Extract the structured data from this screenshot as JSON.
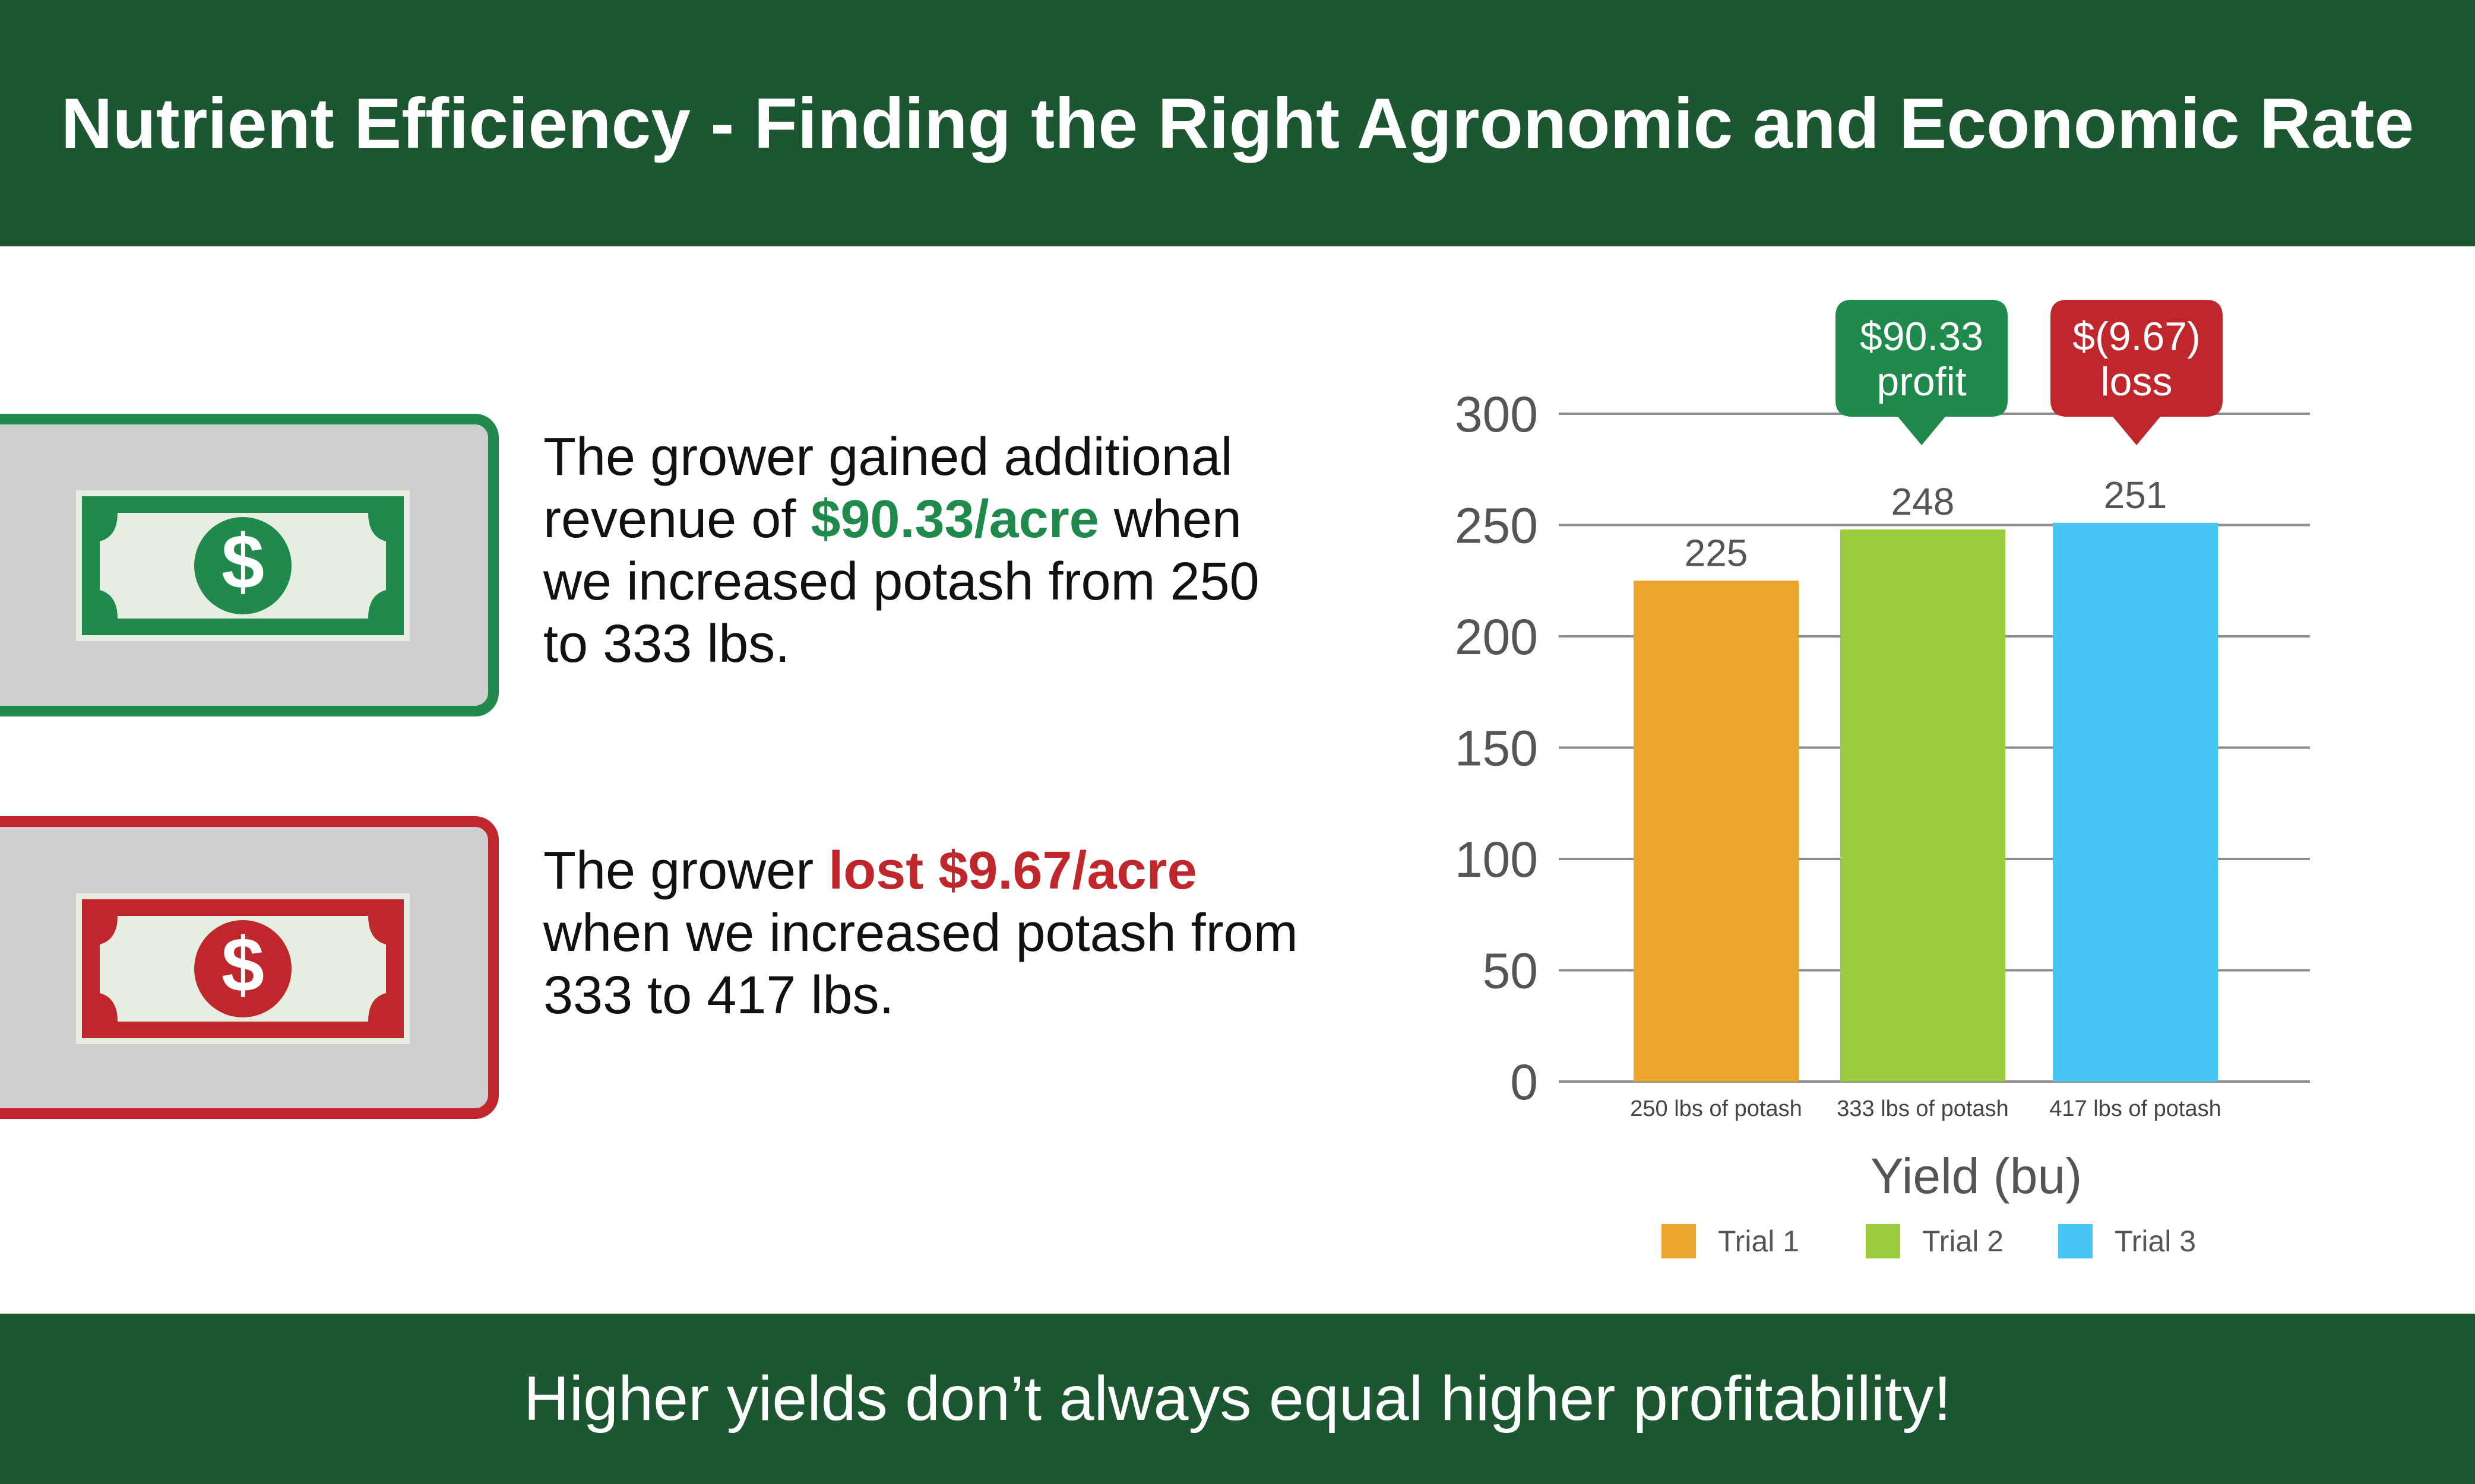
{
  "title": "Nutrient Efficiency - Finding the Right Agronomic and Economic Rate",
  "footer_text": "Higher yields don’t always equal higher profitability!",
  "notes": {
    "gain": {
      "before": "The grower gained additional revenue of ",
      "highlight": "$90.33/acre",
      "after": " when we increased potash from 250 to 333 lbs."
    },
    "loss": {
      "before": "The grower ",
      "highlight": "lost $9.67/acre",
      "after": " when we increased potash from 333 to 417 lbs."
    }
  },
  "icons": {
    "gain": "dollar-bill-green-icon",
    "loss": "dollar-bill-red-icon",
    "dollar_symbol": "$"
  },
  "colors": {
    "header_bg": "#1c5732",
    "gain": "#1f8a4c",
    "loss": "#c0272d",
    "trial1": "#eca42c",
    "trial2": "#9acb3c",
    "trial3": "#47c5f4"
  },
  "callouts": {
    "profit": [
      "$90.33",
      "profit"
    ],
    "loss": [
      "$(9.67)",
      "loss"
    ]
  },
  "chart_data": {
    "type": "bar",
    "xlabel": "Yield (bu)",
    "ylabel": "",
    "ylim": [
      0,
      300
    ],
    "yticks": [
      0,
      50,
      100,
      150,
      200,
      250,
      300
    ],
    "grid": true,
    "legend_position": "bottom",
    "categories": [
      "250 lbs of potash",
      "333 lbs of potash",
      "417 lbs of potash"
    ],
    "series": [
      {
        "name": "Trial 1",
        "values": [
          225,
          null,
          null
        ]
      },
      {
        "name": "Trial 2",
        "values": [
          null,
          248,
          null
        ]
      },
      {
        "name": "Trial 3",
        "values": [
          null,
          null,
          251
        ]
      }
    ],
    "data_labels": [
      "225",
      "248",
      "251"
    ],
    "values": [
      225,
      248,
      251
    ]
  }
}
